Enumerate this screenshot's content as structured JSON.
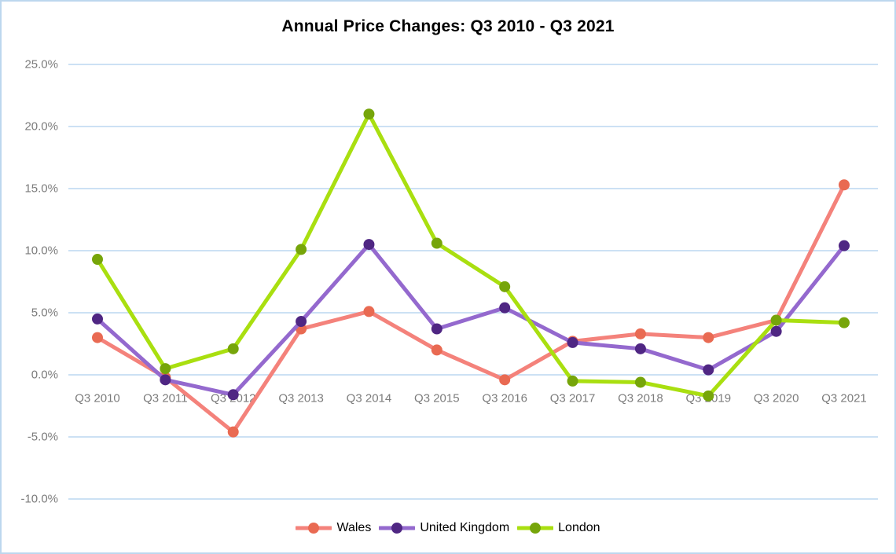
{
  "window": {
    "border_color": "#BDD7EE",
    "background_color": "#FFFFFF"
  },
  "chart_data": {
    "type": "line",
    "title": "Annual Price Changes: Q3 2010 - Q3 2021",
    "categories": [
      "Q3 2010",
      "Q3 2011",
      "Q3 2012",
      "Q3 2013",
      "Q3 2014",
      "Q3 2015",
      "Q3 2016",
      "Q3 2017",
      "Q3 2018",
      "Q3 2019",
      "Q3 2020",
      "Q3 2021"
    ],
    "series": [
      {
        "name": "Wales",
        "line_color": "#F4827B",
        "marker_color": "#E96A52",
        "values": [
          3.0,
          -0.2,
          -4.6,
          3.7,
          5.1,
          2.0,
          -0.4,
          2.7,
          3.3,
          3.0,
          4.4,
          15.3
        ]
      },
      {
        "name": "United Kingdom",
        "line_color": "#9469CE",
        "marker_color": "#4F2683",
        "values": [
          4.5,
          -0.4,
          -1.6,
          4.3,
          10.5,
          3.7,
          5.4,
          2.6,
          2.1,
          0.4,
          3.5,
          10.4
        ]
      },
      {
        "name": "London",
        "line_color": "#A9DF10",
        "marker_color": "#76A50A",
        "values": [
          9.3,
          0.5,
          2.1,
          10.1,
          21.0,
          10.6,
          7.1,
          -0.5,
          -0.6,
          -1.7,
          4.4,
          4.2
        ]
      }
    ],
    "y_axis": {
      "tick_labels": [
        "25.0%",
        "20.0%",
        "15.0%",
        "10.0%",
        "5.0%",
        "0.0%",
        "-5.0%",
        "-10.0%"
      ],
      "tick_values": [
        25,
        20,
        15,
        10,
        5,
        0,
        -5,
        -10
      ],
      "min": -10,
      "max": 25
    },
    "x_axis": {
      "label_y_position": "below zero line"
    },
    "style": {
      "grid_color": "#C5DDF2",
      "axis_label_color": "#7C7C7C",
      "grid_on": true,
      "legend_position": "bottom"
    }
  }
}
